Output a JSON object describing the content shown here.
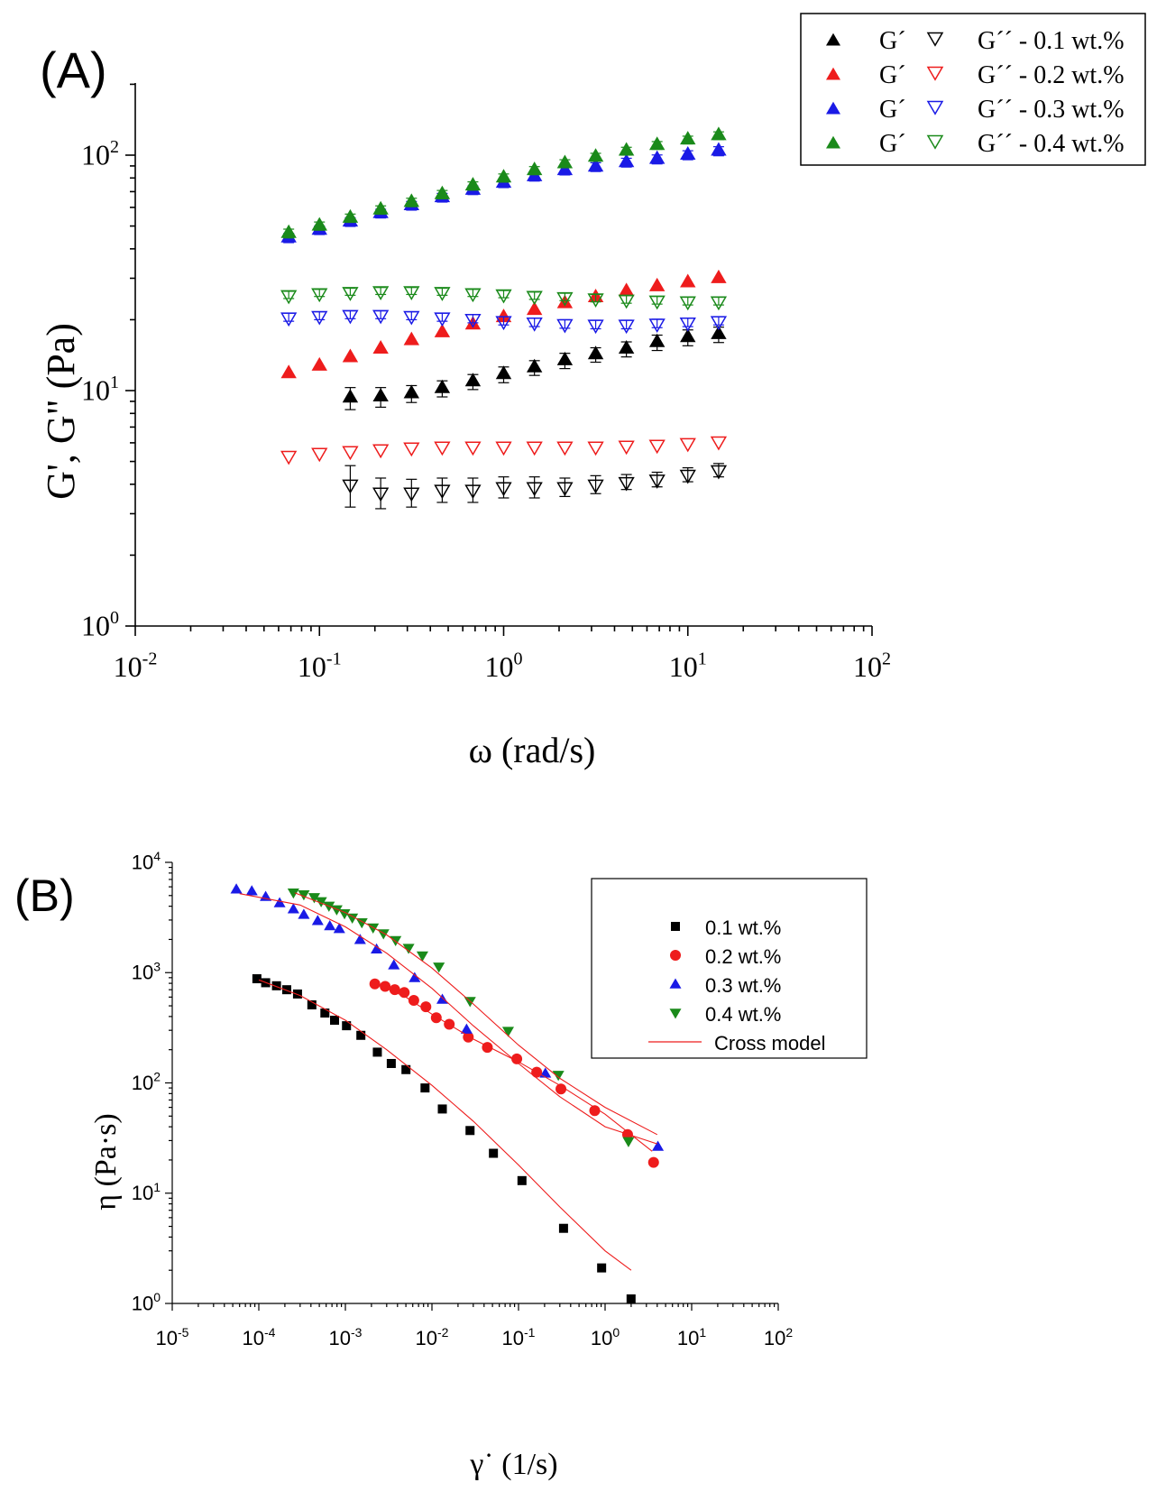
{
  "panel_a": {
    "panel_label": "(A)",
    "legend": [
      {
        "g1": "G´",
        "g2": "G´´ - 0.1 wt.%",
        "color": "#000000"
      },
      {
        "g1": "G´",
        "g2": "G´´ - 0.2 wt.%",
        "color": "#ee1c1c"
      },
      {
        "g1": "G´",
        "g2": "G´´ - 0.3 wt.%",
        "color": "#1a1ae6"
      },
      {
        "g1": "G´",
        "g2": "G´´ - 0.4 wt.%",
        "color": "#1a8a1a"
      }
    ]
  },
  "panel_b": {
    "panel_label": "(B)",
    "legend": [
      {
        "label": "0.1 wt.%",
        "color": "#000000",
        "marker": "square"
      },
      {
        "label": "0.2 wt.%",
        "color": "#ee1c1c",
        "marker": "circle"
      },
      {
        "label": "0.3 wt.%",
        "color": "#1a1ae6",
        "marker": "triangle-up"
      },
      {
        "label": "0.4 wt.%",
        "color": "#1a8a1a",
        "marker": "triangle-down"
      },
      {
        "label": "Cross model",
        "color": "#ee1c1c",
        "marker": "line"
      }
    ]
  },
  "chart_data": [
    {
      "type": "scatter",
      "title": "",
      "xlabel": "ω (rad/s)",
      "ylabel": "G', G\" (Pa)",
      "xscale": "log",
      "yscale": "log",
      "xlim": [
        0.01,
        100
      ],
      "ylim": [
        1,
        200
      ],
      "x_ticks": [
        "10-2",
        "10-1",
        "100",
        "101",
        "102"
      ],
      "y_ticks": [
        "100",
        "101",
        "102"
      ],
      "grid": false,
      "legend_position": "top-right",
      "series": [
        {
          "legend": "0.1 wt.%",
          "quantity": "G'",
          "marker": "triangle-up-filled",
          "color": "#000000",
          "x": [
            0.147,
            0.215,
            0.316,
            0.464,
            0.681,
            1.0,
            1.47,
            2.15,
            3.16,
            4.64,
            6.81,
            10.0,
            14.7
          ],
          "y": [
            9.3,
            9.4,
            9.7,
            10.2,
            10.9,
            11.7,
            12.5,
            13.4,
            14.2,
            15.0,
            16.0,
            16.8,
            17.3
          ],
          "err": [
            1.0,
            0.9,
            0.8,
            0.8,
            0.8,
            0.9,
            0.9,
            1.0,
            1.0,
            1.1,
            1.2,
            1.3,
            1.3
          ]
        },
        {
          "legend": "0.1 wt.%",
          "quantity": "G''",
          "marker": "triangle-down-open",
          "color": "#000000",
          "x": [
            0.147,
            0.215,
            0.316,
            0.464,
            0.681,
            1.0,
            1.47,
            2.15,
            3.16,
            4.64,
            6.81,
            10.0,
            14.7
          ],
          "y": [
            4.0,
            3.7,
            3.7,
            3.8,
            3.8,
            3.9,
            3.9,
            3.9,
            4.0,
            4.1,
            4.2,
            4.4,
            4.6
          ],
          "err": [
            0.8,
            0.55,
            0.5,
            0.45,
            0.45,
            0.4,
            0.4,
            0.35,
            0.35,
            0.3,
            0.3,
            0.3,
            0.3
          ]
        },
        {
          "legend": "0.2 wt.%",
          "quantity": "G'",
          "marker": "triangle-up-filled",
          "color": "#ee1c1c",
          "x": [
            0.0681,
            0.1,
            0.147,
            0.215,
            0.316,
            0.464,
            0.681,
            1.0,
            1.47,
            2.15,
            3.16,
            4.64,
            6.81,
            10.0,
            14.7
          ],
          "y": [
            11.8,
            12.7,
            13.8,
            15.0,
            16.3,
            17.6,
            19.0,
            20.4,
            21.9,
            23.4,
            24.8,
            26.3,
            27.6,
            28.7,
            29.9
          ],
          "err": []
        },
        {
          "legend": "0.2 wt.%",
          "quantity": "G''",
          "marker": "triangle-down-open",
          "color": "#ee1c1c",
          "x": [
            0.0681,
            0.1,
            0.147,
            0.215,
            0.316,
            0.464,
            0.681,
            1.0,
            1.47,
            2.15,
            3.16,
            4.64,
            6.81,
            10.0,
            14.7
          ],
          "y": [
            5.3,
            5.45,
            5.55,
            5.65,
            5.75,
            5.8,
            5.8,
            5.8,
            5.8,
            5.8,
            5.8,
            5.85,
            5.9,
            6.0,
            6.1
          ],
          "err": []
        },
        {
          "legend": "0.3 wt.%",
          "quantity": "G'",
          "marker": "triangle-up-filled",
          "color": "#1a1ae6",
          "x": [
            0.0681,
            0.1,
            0.147,
            0.215,
            0.316,
            0.464,
            0.681,
            1.0,
            1.47,
            2.15,
            3.16,
            4.64,
            6.81,
            10.0,
            14.7
          ],
          "y": [
            44.5,
            48.0,
            52.0,
            56.5,
            61.0,
            66.0,
            71.0,
            76.0,
            81.0,
            86.0,
            89.0,
            93.0,
            96.0,
            100.0,
            104.0
          ],
          "err": [
            2.0,
            2.0,
            2.2,
            2.4,
            2.6,
            2.8,
            3.0,
            3.2,
            3.4,
            3.6,
            3.8,
            4.0,
            4.2,
            4.4,
            4.6
          ]
        },
        {
          "legend": "0.3 wt.%",
          "quantity": "G''",
          "marker": "triangle-down-open",
          "color": "#1a1ae6",
          "x": [
            0.0681,
            0.1,
            0.147,
            0.215,
            0.316,
            0.464,
            0.681,
            1.0,
            1.47,
            2.15,
            3.16,
            4.64,
            6.81,
            10.0,
            14.7
          ],
          "y": [
            20.5,
            20.8,
            21.0,
            21.0,
            20.8,
            20.5,
            20.2,
            19.8,
            19.5,
            19.2,
            19.1,
            19.1,
            19.3,
            19.5,
            19.8
          ],
          "err": [
            0.8,
            0.8,
            0.8,
            0.8,
            0.8,
            0.8,
            0.8,
            0.8,
            0.8,
            0.8,
            0.8,
            0.8,
            0.8,
            0.8,
            0.8
          ]
        },
        {
          "legend": "0.4 wt.%",
          "quantity": "G'",
          "marker": "triangle-up-filled",
          "color": "#1a8a1a",
          "x": [
            0.0681,
            0.1,
            0.147,
            0.215,
            0.316,
            0.464,
            0.681,
            1.0,
            1.47,
            2.15,
            3.16,
            4.64,
            6.81,
            10.0,
            14.7
          ],
          "y": [
            46.5,
            50.0,
            54.0,
            58.5,
            63.0,
            68.0,
            74.0,
            80.0,
            86.0,
            92.0,
            98.0,
            104.0,
            110.0,
            116.0,
            121.0
          ],
          "err": [
            2.0,
            2.0,
            2.2,
            2.4,
            2.6,
            2.8,
            3.0,
            3.2,
            3.4,
            3.6,
            3.8,
            4.0,
            4.2,
            4.4,
            4.6
          ]
        },
        {
          "legend": "0.4 wt.%",
          "quantity": "G''",
          "marker": "triangle-down-open",
          "color": "#1a8a1a",
          "x": [
            0.0681,
            0.1,
            0.147,
            0.215,
            0.316,
            0.464,
            0.681,
            1.0,
            1.47,
            2.15,
            3.16,
            4.64,
            6.81,
            10.0,
            14.7
          ],
          "y": [
            25.5,
            26.0,
            26.3,
            26.5,
            26.5,
            26.3,
            26.0,
            25.7,
            25.3,
            25.0,
            24.7,
            24.4,
            24.2,
            24.0,
            24.0
          ],
          "err": [
            0.9,
            0.9,
            0.9,
            0.9,
            0.9,
            0.9,
            0.9,
            0.9,
            0.9,
            0.9,
            0.9,
            0.9,
            0.9,
            0.9,
            0.9
          ]
        }
      ]
    },
    {
      "type": "scatter",
      "title": "",
      "xlabel": "γ˙ (1/s)",
      "ylabel": "η (Pa·s)",
      "xscale": "log",
      "yscale": "log",
      "xlim": [
        1e-05,
        100
      ],
      "ylim": [
        1,
        10000
      ],
      "x_ticks": [
        "10-5",
        "10-4",
        "10-3",
        "10-2",
        "10-1",
        "100",
        "101",
        "102"
      ],
      "y_ticks": [
        "100",
        "101",
        "102",
        "103",
        "104"
      ],
      "grid": false,
      "legend_position": "top-right",
      "series": [
        {
          "name": "0.1 wt.%",
          "marker": "square",
          "color": "#000000",
          "x": [
            9.5e-05,
            0.00012,
            0.00016,
            0.00021,
            0.00028,
            0.00041,
            0.00058,
            0.00075,
            0.00103,
            0.00151,
            0.00234,
            0.00339,
            0.00501,
            0.00832,
            0.01318,
            0.02754,
            0.05129,
            0.1096,
            0.3311,
            0.912,
            1.9953
          ],
          "y": [
            880,
            810,
            760,
            700,
            640,
            510,
            430,
            370,
            330,
            270,
            190,
            150,
            132,
            90,
            58,
            37,
            23,
            13,
            4.8,
            2.1,
            1.1
          ]
        },
        {
          "name": "0.2 wt.%",
          "marker": "circle",
          "color": "#ee1c1c",
          "x": [
            0.00219,
            0.00288,
            0.00372,
            0.00479,
            0.00617,
            0.00851,
            0.01122,
            0.01585,
            0.0263,
            0.04365,
            0.0955,
            0.16218,
            0.30903,
            0.75858,
            1.8197,
            3.6308
          ],
          "y": [
            790,
            750,
            700,
            660,
            560,
            490,
            390,
            340,
            260,
            210,
            165,
            125,
            88,
            56,
            34,
            19
          ]
        },
        {
          "name": "0.3 wt.%",
          "marker": "triangle-up",
          "color": "#1a1ae6",
          "x": [
            5.5e-05,
            8.3e-05,
            0.00012,
            0.000174,
            0.000251,
            0.000331,
            0.000479,
            0.000661,
            0.000851,
            0.001479,
            0.002291,
            0.003631,
            0.00631,
            0.013183,
            0.025119,
            0.204174,
            4.073803
          ],
          "y": [
            5600,
            5400,
            4800,
            4200,
            3700,
            3300,
            2900,
            2600,
            2450,
            1950,
            1600,
            1150,
            880,
            560,
            300,
            120,
            26
          ]
        },
        {
          "name": "0.4 wt.%",
          "marker": "triangle-down",
          "color": "#1a8a1a",
          "x": [
            0.000251,
            0.000331,
            0.000437,
            0.000525,
            0.000646,
            0.000794,
            0.000977,
            0.001202,
            0.001549,
            0.002089,
            0.002754,
            0.003802,
            0.00537,
            0.007762,
            0.012023,
            0.027542,
            0.075858,
            0.288403,
            1.862087
          ],
          "y": [
            5400,
            5200,
            4900,
            4500,
            4100,
            3800,
            3500,
            3200,
            2900,
            2600,
            2300,
            2000,
            1700,
            1450,
            1150,
            560,
            300,
            120,
            30
          ]
        },
        {
          "name": "Cross model",
          "marker": "line",
          "color": "#ee1c1c",
          "curves": [
            {
              "x": [
                0.0001,
                0.0003,
                0.001,
                0.003,
                0.01,
                0.03,
                0.1,
                0.3,
                1,
                2
              ],
              "y": [
                860,
                620,
                370,
                200,
                95,
                45,
                18,
                7.5,
                3,
                2
              ]
            },
            {
              "x": [
                0.0022,
                0.005,
                0.01,
                0.03,
                0.1,
                0.3,
                1,
                3.5
              ],
              "y": [
                800,
                600,
                420,
                250,
                155,
                95,
                52,
                24
              ]
            },
            {
              "x": [
                6e-05,
                0.0003,
                0.001,
                0.003,
                0.01,
                0.03,
                0.1,
                0.3,
                1,
                4
              ],
              "y": [
                5200,
                4100,
                2600,
                1500,
                720,
                330,
                150,
                75,
                40,
                28
              ]
            },
            {
              "x": [
                0.00026,
                0.001,
                0.003,
                0.01,
                0.03,
                0.1,
                0.3,
                1,
                4
              ],
              "y": [
                5300,
                3500,
                2200,
                1100,
                520,
                220,
                110,
                60,
                34
              ]
            }
          ]
        }
      ]
    }
  ]
}
